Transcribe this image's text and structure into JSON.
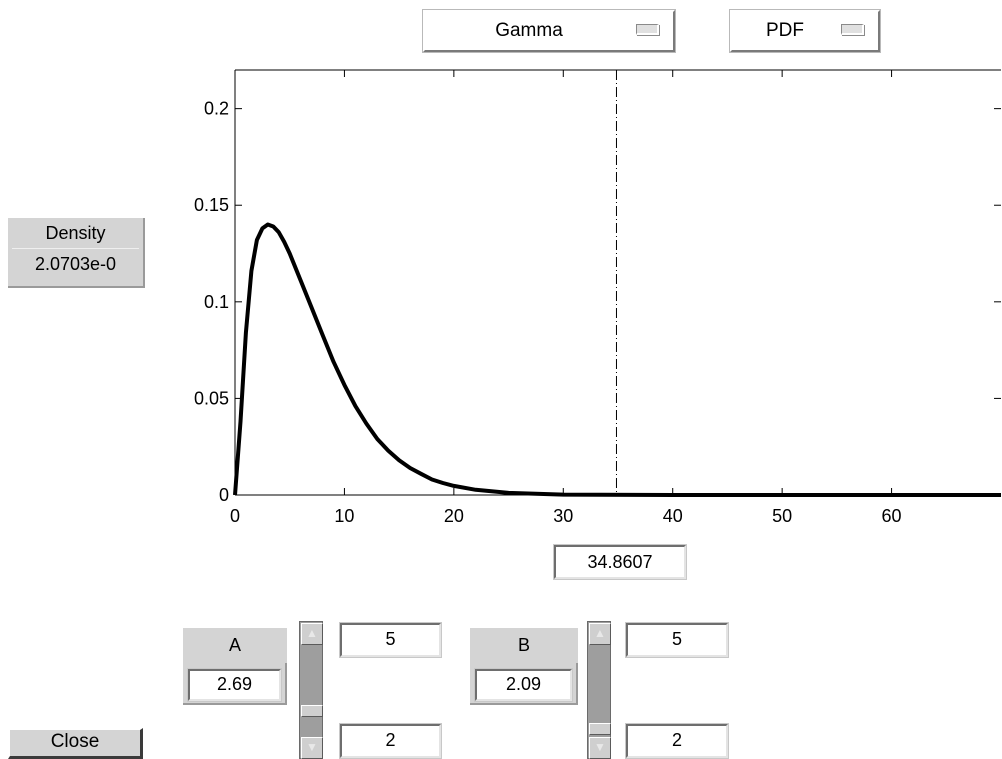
{
  "distribution_menu": {
    "selected": "Gamma"
  },
  "function_menu": {
    "selected": "PDF"
  },
  "density": {
    "label": "Density",
    "value": "2.0703e-0"
  },
  "x_value": "34.8607",
  "params": [
    {
      "name": "A",
      "value": "2.69",
      "upper": "5",
      "lower": "2",
      "slider_fraction": 0.23
    },
    {
      "name": "B",
      "value": "2.09",
      "upper": "5",
      "lower": "2",
      "slider_fraction": 0.03
    }
  ],
  "close_label": "Close",
  "chart_data": {
    "type": "line",
    "title": "",
    "xlabel": "",
    "ylabel": "",
    "xlim": [
      0,
      70
    ],
    "ylim": [
      0,
      0.22
    ],
    "xticks": [
      "0",
      "10",
      "20",
      "30",
      "40",
      "50",
      "60"
    ],
    "yticks": [
      "0",
      "0.05",
      "0.1",
      "0.15",
      "0.2"
    ],
    "xtick_values": [
      0,
      10,
      20,
      30,
      40,
      50,
      60
    ],
    "ytick_values": [
      0,
      0.05,
      0.1,
      0.15,
      0.2
    ],
    "grid": false,
    "cursor_x": 34.8607,
    "series": [
      {
        "x": [
          0,
          0.5,
          1,
          1.5,
          2,
          2.5,
          3,
          3.5,
          4,
          4.5,
          5,
          6,
          7,
          8,
          9,
          10,
          11,
          12,
          13,
          14,
          15,
          16,
          17,
          18,
          19,
          20,
          22,
          25,
          30,
          40,
          50,
          60,
          70
        ],
        "values": [
          0,
          0.038,
          0.084,
          0.116,
          0.132,
          0.138,
          0.14,
          0.139,
          0.136,
          0.131,
          0.125,
          0.111,
          0.097,
          0.083,
          0.069,
          0.057,
          0.046,
          0.037,
          0.029,
          0.023,
          0.018,
          0.014,
          0.011,
          0.008,
          0.0062,
          0.0047,
          0.0027,
          0.0011,
          0.0002,
          0,
          0,
          0,
          0
        ]
      }
    ]
  }
}
